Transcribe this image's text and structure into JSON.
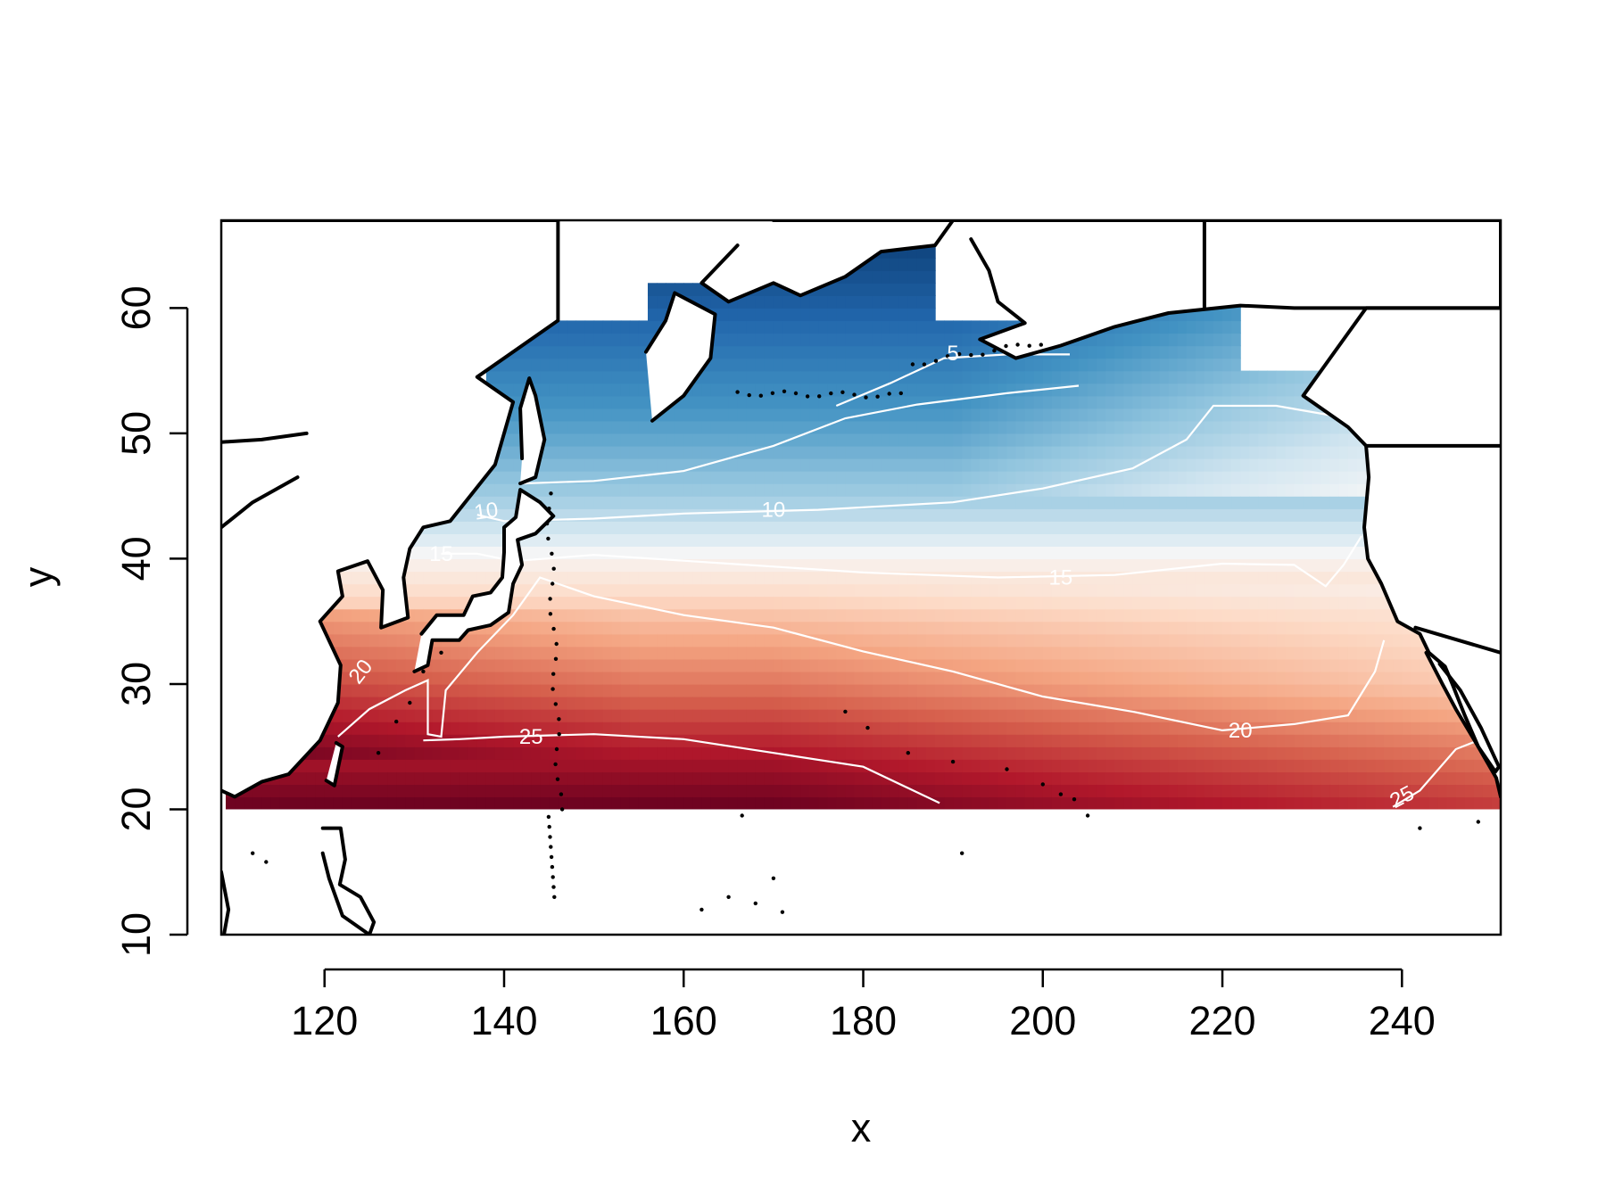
{
  "chart_data": {
    "type": "heatmap",
    "title": "",
    "xlabel": "x",
    "ylabel": "y",
    "xlim": [
      108.5,
      251
    ],
    "ylim": [
      10,
      67
    ],
    "x_ticks": [
      120,
      140,
      160,
      180,
      200,
      220,
      240
    ],
    "y_ticks": [
      10,
      20,
      30,
      40,
      50,
      60
    ],
    "x_tick_labels": [
      "120",
      "140",
      "160",
      "180",
      "200",
      "220",
      "240"
    ],
    "y_tick_labels": [
      "10",
      "20",
      "30",
      "40",
      "50",
      "60"
    ],
    "grid": false,
    "legend": "none",
    "colormap": [
      "#67001f",
      "#b2182b",
      "#d6604d",
      "#f4a582",
      "#fddbc7",
      "#f7f7f7",
      "#d1e5f0",
      "#92c5de",
      "#4393c3",
      "#2166ac",
      "#053061"
    ],
    "value_range": [
      0,
      28
    ],
    "contour_levels": [
      5,
      10,
      15,
      20,
      25
    ],
    "contour_labels": [
      "5",
      "10",
      "10",
      "15",
      "15",
      "20",
      "20",
      "25",
      "25"
    ],
    "contours": [
      {
        "level": 5,
        "points": [
          [
            177,
            52.2
          ],
          [
            183,
            54
          ],
          [
            189,
            56
          ],
          [
            196,
            56.3
          ],
          [
            203,
            56.3
          ]
        ]
      },
      {
        "level": 10,
        "points": [
          [
            142,
            46
          ],
          [
            150,
            46.2
          ],
          [
            160,
            47
          ],
          [
            170,
            49
          ],
          [
            178,
            51.2
          ],
          [
            186,
            52.3
          ],
          [
            196,
            53.2
          ],
          [
            204,
            53.8
          ]
        ]
      },
      {
        "level": 10,
        "points": [
          [
            137,
            43.5
          ],
          [
            140,
            43
          ],
          [
            150,
            43.2
          ],
          [
            160,
            43.6
          ],
          [
            175,
            43.9
          ],
          [
            190,
            44.5
          ],
          [
            200,
            45.6
          ],
          [
            210,
            47.2
          ],
          [
            216,
            49.5
          ],
          [
            219,
            52.2
          ],
          [
            226,
            52.2
          ],
          [
            234,
            51.2
          ]
        ]
      },
      {
        "level": 15,
        "points": [
          [
            133,
            40.4
          ],
          [
            137,
            40.4
          ],
          [
            141,
            39.8
          ],
          [
            150,
            40.3
          ],
          [
            165,
            39.6
          ],
          [
            180,
            38.9
          ],
          [
            195,
            38.5
          ],
          [
            208,
            38.7
          ],
          [
            220,
            39.6
          ],
          [
            228,
            39.5
          ],
          [
            231.5,
            37.8
          ],
          [
            233.5,
            39.5
          ],
          [
            235.5,
            41.8
          ]
        ]
      },
      {
        "level": 20,
        "points": [
          [
            121.5,
            25.8
          ],
          [
            125,
            28
          ],
          [
            129,
            29.5
          ],
          [
            131.5,
            30.3
          ],
          [
            131.5,
            26
          ],
          [
            133,
            25.8
          ],
          [
            133.5,
            29.5
          ],
          [
            137,
            32.5
          ],
          [
            141,
            35.5
          ],
          [
            144,
            38.5
          ],
          [
            150,
            37
          ],
          [
            160,
            35.5
          ],
          [
            170,
            34.5
          ],
          [
            180,
            32.6
          ],
          [
            190,
            31
          ],
          [
            200,
            29
          ],
          [
            210,
            27.8
          ],
          [
            220,
            26.3
          ],
          [
            228,
            26.8
          ],
          [
            234,
            27.5
          ],
          [
            237,
            31
          ],
          [
            238,
            33.5
          ]
        ]
      },
      {
        "level": 25,
        "points": [
          [
            131,
            25.5
          ],
          [
            135,
            25.6
          ],
          [
            140,
            25.8
          ],
          [
            150,
            26
          ],
          [
            160,
            25.6
          ],
          [
            170,
            24.5
          ],
          [
            180,
            23.4
          ],
          [
            188.5,
            20.5
          ]
        ]
      },
      {
        "level": 25,
        "points": [
          [
            239,
            20.2
          ],
          [
            242,
            21.5
          ],
          [
            246,
            24.8
          ],
          [
            248.5,
            25.5
          ]
        ]
      }
    ],
    "coastline": true,
    "grid_resolution_deg": 1,
    "data_extent": {
      "lon": [
        109,
        251
      ],
      "lat": [
        20,
        67
      ]
    }
  }
}
